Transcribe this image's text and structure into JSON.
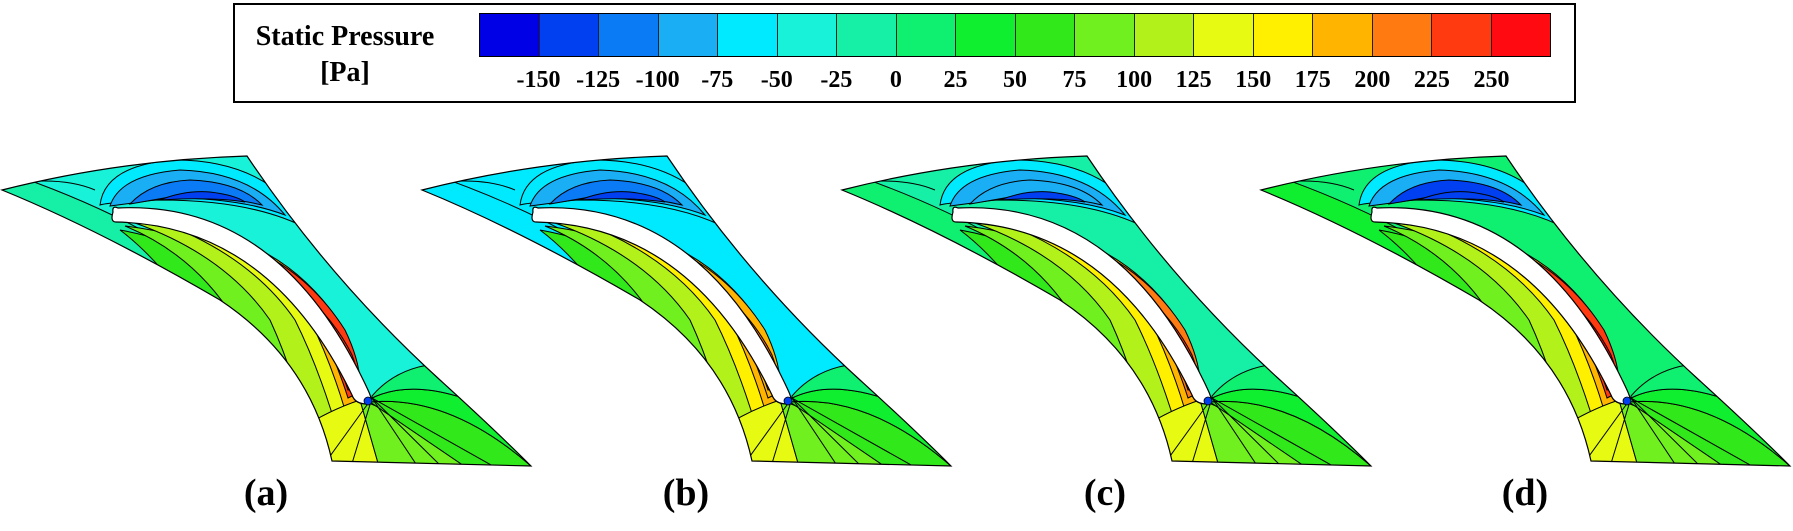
{
  "legend": {
    "title_line1": "Static Pressure",
    "title_line2": "[Pa]",
    "ticks": [
      "-150",
      "-125",
      "-100",
      "-75",
      "-50",
      "-25",
      "0",
      "25",
      "50",
      "75",
      "100",
      "125",
      "150",
      "175",
      "200",
      "225",
      "250"
    ],
    "colors": [
      "#0000e6",
      "#0040f0",
      "#0a7af5",
      "#1aaff5",
      "#00eaff",
      "#18f2d8",
      "#15f0a6",
      "#10f070",
      "#10ee30",
      "#30e81a",
      "#70f01e",
      "#b2f21a",
      "#e6fa12",
      "#fff000",
      "#ffb400",
      "#ff7a10",
      "#ff3a10",
      "#ff0a10"
    ]
  },
  "panels": [
    {
      "label": "(a)",
      "variant": "a"
    },
    {
      "label": "(b)",
      "variant": "b"
    },
    {
      "label": "(c)",
      "variant": "c"
    },
    {
      "label": "(d)",
      "variant": "d"
    }
  ]
}
